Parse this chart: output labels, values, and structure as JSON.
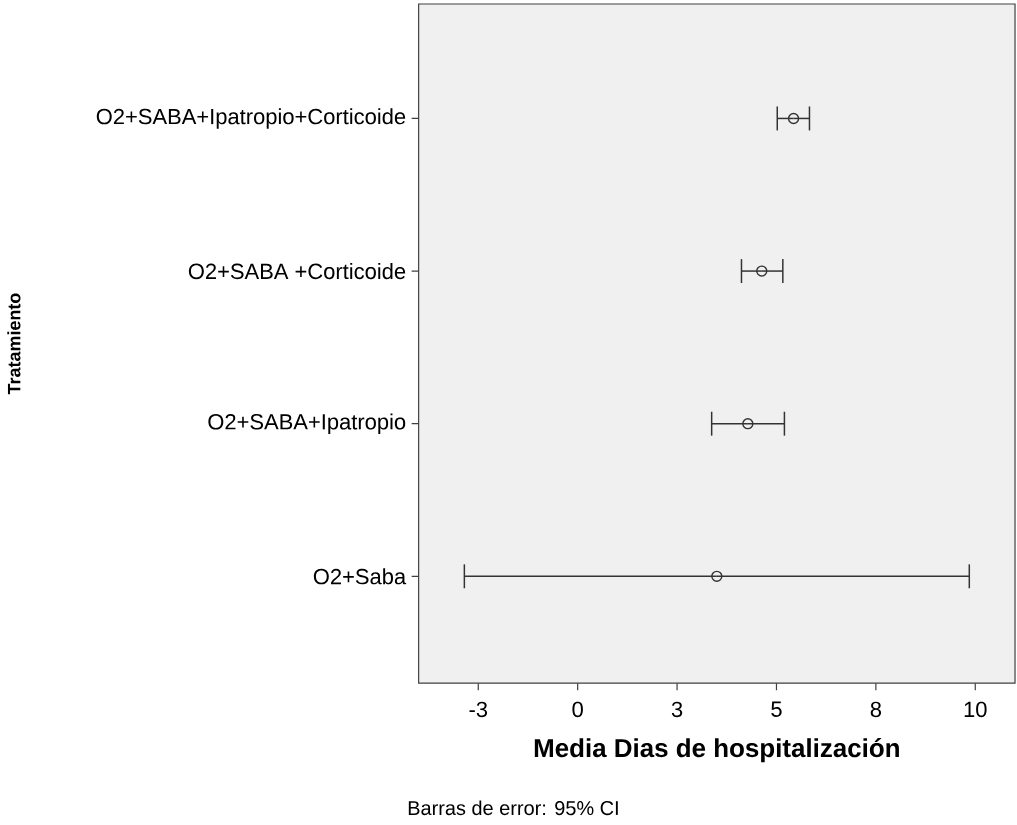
{
  "chart_data": {
    "type": "scatter",
    "orientation": "horizontal",
    "xlabel": "Media Dias de hospitalización",
    "ylabel": "Tratamiento",
    "categories": [
      "O2+SABA+Ipatropio+Corticoide",
      "O2+SABA +Corticoide",
      "O2+SABA+Ipatropio",
      "O2+Saba"
    ],
    "values": [
      5.43,
      4.63,
      4.28,
      3.5
    ],
    "errors": [
      [
        5.02,
        5.83
      ],
      [
        4.12,
        5.16
      ],
      [
        3.37,
        5.2
      ],
      [
        -2.85,
        9.85
      ]
    ],
    "color": "#333333",
    "marker": "circle",
    "xlim": [
      -4,
      11
    ],
    "xticks": [
      {
        "value": -2.5,
        "label": "-3"
      },
      0,
      {
        "value": 2.5,
        "label": "3"
      },
      5,
      {
        "value": 7.5,
        "label": "8"
      },
      10
    ],
    "annotations": [
      "Barras de error: 95% CI"
    ]
  }
}
